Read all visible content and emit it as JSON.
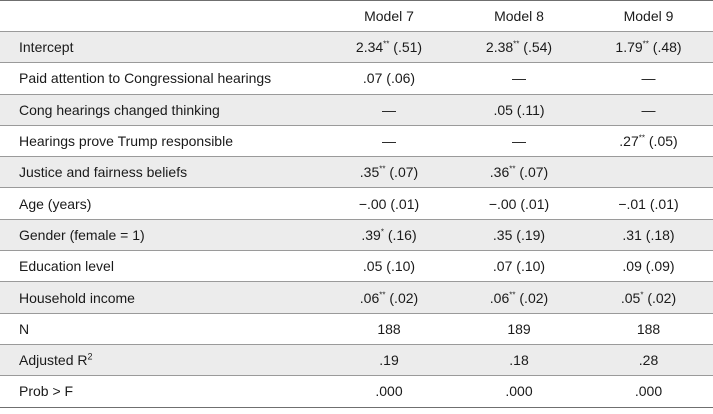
{
  "columns": [
    "Model 7",
    "Model 8",
    "Model 9"
  ],
  "rows": [
    {
      "label": "Intercept",
      "cells": [
        {
          "coef": "2.34",
          "sig": "**",
          "se": " (.51)"
        },
        {
          "coef": "2.38",
          "sig": "**",
          "se": " (.54)"
        },
        {
          "coef": "1.79",
          "sig": "**",
          "se": " (.48)"
        }
      ]
    },
    {
      "label": "Paid attention to Congressional hearings",
      "cells": [
        {
          "coef": ".07",
          "sig": "",
          "se": " (.06)"
        },
        {
          "coef": "—",
          "sig": "",
          "se": ""
        },
        {
          "coef": "—",
          "sig": "",
          "se": ""
        }
      ]
    },
    {
      "label": "Cong hearings changed thinking",
      "cells": [
        {
          "coef": "—",
          "sig": "",
          "se": ""
        },
        {
          "coef": ".05",
          "sig": "",
          "se": " (.11)"
        },
        {
          "coef": "—",
          "sig": "",
          "se": ""
        }
      ]
    },
    {
      "label": "Hearings prove Trump responsible",
      "cells": [
        {
          "coef": "—",
          "sig": "",
          "se": ""
        },
        {
          "coef": "—",
          "sig": "",
          "se": ""
        },
        {
          "coef": ".27",
          "sig": "**",
          "se": " (.05)"
        }
      ]
    },
    {
      "label": "Justice and fairness beliefs",
      "cells": [
        {
          "coef": ".35",
          "sig": "**",
          "se": " (.07)"
        },
        {
          "coef": ".36",
          "sig": "**",
          "se": " (.07)"
        },
        {
          "coef": "",
          "sig": "",
          "se": ""
        }
      ]
    },
    {
      "label": "Age (years)",
      "cells": [
        {
          "coef": "−.00",
          "sig": "",
          "se": " (.01)"
        },
        {
          "coef": "−.00",
          "sig": "",
          "se": " (.01)"
        },
        {
          "coef": "−.01",
          "sig": "",
          "se": " (.01)"
        }
      ]
    },
    {
      "label": "Gender (female = 1)",
      "cells": [
        {
          "coef": ".39",
          "sig": "*",
          "se": " (.16)"
        },
        {
          "coef": ".35",
          "sig": "",
          "se": " (.19)"
        },
        {
          "coef": ".31",
          "sig": "",
          "se": " (.18)"
        }
      ]
    },
    {
      "label": "Education level",
      "cells": [
        {
          "coef": ".05",
          "sig": "",
          "se": " (.10)"
        },
        {
          "coef": ".07",
          "sig": "",
          "se": " (.10)"
        },
        {
          "coef": ".09",
          "sig": "",
          "se": " (.09)"
        }
      ]
    },
    {
      "label": "Household income",
      "cells": [
        {
          "coef": ".06",
          "sig": "**",
          "se": " (.02)"
        },
        {
          "coef": ".06",
          "sig": "**",
          "se": " (.02)"
        },
        {
          "coef": ".05",
          "sig": "*",
          "se": " (.02)"
        }
      ]
    },
    {
      "label": "N",
      "cells": [
        {
          "coef": "188",
          "sig": "",
          "se": ""
        },
        {
          "coef": "189",
          "sig": "",
          "se": ""
        },
        {
          "coef": "188",
          "sig": "",
          "se": ""
        }
      ]
    },
    {
      "label": "Adjusted R",
      "label_sup": "2",
      "cells": [
        {
          "coef": ".19",
          "sig": "",
          "se": ""
        },
        {
          "coef": ".18",
          "sig": "",
          "se": ""
        },
        {
          "coef": ".28",
          "sig": "",
          "se": ""
        }
      ]
    },
    {
      "label": "Prob > F",
      "cells": [
        {
          "coef": ".000",
          "sig": "",
          "se": ""
        },
        {
          "coef": ".000",
          "sig": "",
          "se": ""
        },
        {
          "coef": ".000",
          "sig": "",
          "se": ""
        }
      ]
    }
  ],
  "colors": {
    "stripe": "#ececec",
    "rule": "#9a9a9a",
    "text": "#1a1a1a"
  }
}
